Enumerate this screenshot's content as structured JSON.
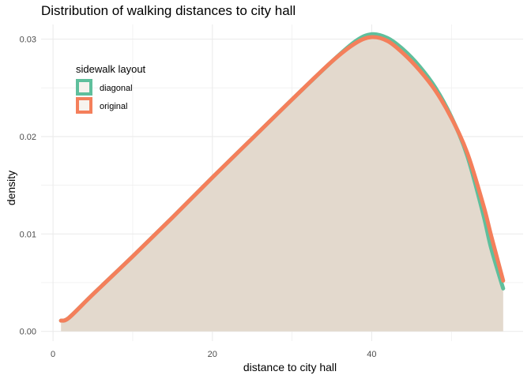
{
  "chart_data": {
    "type": "area",
    "title": "Distribution of walking distances to city hall",
    "xlabel": "distance to city hall",
    "ylabel": "density",
    "xlim": [
      -1.5,
      59
    ],
    "ylim": [
      -0.001,
      0.0315
    ],
    "x_ticks": [
      0,
      20,
      40
    ],
    "y_ticks": [
      0.0,
      0.01,
      0.02,
      0.03
    ],
    "y_tick_labels": [
      "0.00",
      "0.01",
      "0.02",
      "0.03"
    ],
    "grid": true,
    "legend": {
      "title": "sidewalk layout",
      "position": "top-left-inside"
    },
    "fill_color": "#e3d9cd",
    "series": [
      {
        "name": "diagonal",
        "color": "#5fbf9c",
        "x": [
          1,
          2,
          5,
          10,
          15,
          20,
          25,
          30,
          35,
          38,
          40,
          42,
          44,
          46,
          48,
          50,
          52,
          54,
          55,
          56.5
        ],
        "y": [
          0.0011,
          0.0014,
          0.0038,
          0.0077,
          0.0117,
          0.0158,
          0.0198,
          0.0238,
          0.0277,
          0.0298,
          0.0305,
          0.0301,
          0.0289,
          0.0272,
          0.025,
          0.022,
          0.018,
          0.012,
          0.0085,
          0.0044
        ]
      },
      {
        "name": "original",
        "color": "#f47f5b",
        "x": [
          1,
          2,
          5,
          10,
          15,
          20,
          25,
          30,
          35,
          38,
          40,
          42,
          44,
          46,
          48,
          50,
          52,
          54,
          55,
          56.5
        ],
        "y": [
          0.0011,
          0.0014,
          0.0038,
          0.0077,
          0.0117,
          0.0158,
          0.0198,
          0.0238,
          0.0277,
          0.0296,
          0.0302,
          0.0298,
          0.0285,
          0.0268,
          0.0247,
          0.0219,
          0.0183,
          0.013,
          0.0098,
          0.0052
        ]
      }
    ]
  }
}
